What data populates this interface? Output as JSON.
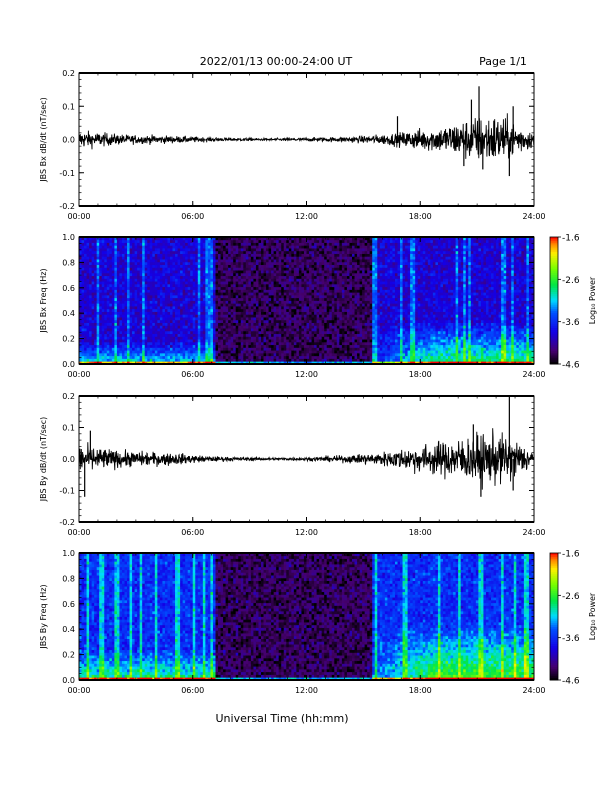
{
  "header": {
    "title": "2022/01/13  00:00-24:00 UT",
    "page": "Page 1/1"
  },
  "footer": {
    "xlabel": "Universal Time (hh:mm)"
  },
  "colors": {
    "trace": "#000000",
    "background": "#ffffff"
  },
  "chart_data": [
    {
      "type": "line",
      "ylabel": "JBS Bx dB/dt (nT/sec)",
      "xlim": [
        0,
        24
      ],
      "ylim": [
        -0.2,
        0.2
      ],
      "ytick_labels": [
        "0.2",
        "0.1",
        "0.0",
        "-0.1",
        "-0.2"
      ],
      "ytick_values": [
        0.2,
        0.1,
        0.0,
        -0.1,
        -0.2
      ],
      "xtick_labels": [
        "00:00",
        "06:00",
        "12:00",
        "18:00",
        "24:00"
      ],
      "xtick_values": [
        0,
        6,
        12,
        18,
        24
      ],
      "series": [
        {
          "x": [
            0,
            1,
            2,
            3,
            4,
            5,
            6,
            7,
            8,
            9,
            10,
            11,
            12,
            13,
            14,
            15,
            16,
            17,
            18,
            19,
            20,
            21,
            22,
            23,
            24
          ],
          "amplitude": [
            0.025,
            0.02,
            0.015,
            0.012,
            0.012,
            0.01,
            0.008,
            0.006,
            0.004,
            0.004,
            0.003,
            0.004,
            0.005,
            0.006,
            0.008,
            0.01,
            0.014,
            0.02,
            0.03,
            0.035,
            0.05,
            0.065,
            0.07,
            0.05,
            0.02
          ]
        }
      ],
      "spikes": [
        {
          "x": 20.7,
          "y": 0.12
        },
        {
          "x": 21.1,
          "y": 0.16
        },
        {
          "x": 21.3,
          "y": -0.09
        },
        {
          "x": 22.9,
          "y": 0.1
        },
        {
          "x": 22.7,
          "y": -0.11
        },
        {
          "x": 16.8,
          "y": 0.07
        },
        {
          "x": 20.3,
          "y": -0.08
        }
      ]
    },
    {
      "type": "heatmap",
      "ylabel": "JBS Bx Freq (Hz)",
      "xlim": [
        0,
        24
      ],
      "ylim": [
        0,
        1.0
      ],
      "ytick_labels": [
        "1.0",
        "0.8",
        "0.6",
        "0.4",
        "0.2",
        "0.0"
      ],
      "ytick_values": [
        1.0,
        0.8,
        0.6,
        0.4,
        0.2,
        0.0
      ],
      "xtick_labels": [
        "00:00",
        "06:00",
        "12:00",
        "18:00",
        "24:00"
      ],
      "xtick_values": [
        0,
        6,
        12,
        18,
        24
      ],
      "colorbar": {
        "label": "Log₁₀ Power",
        "range": [
          -4.6,
          -1.6
        ],
        "tick_labels": [
          "-1.6",
          "-2.6",
          "-3.6",
          "-4.6"
        ],
        "tick_values": [
          -1.6,
          -2.6,
          -3.6,
          -4.6
        ]
      },
      "quiet_interval": [
        7.2,
        15.5
      ],
      "base_level": {
        "active": -3.9,
        "quiet": -4.35
      },
      "low_freq_enhancement": [
        {
          "x": [
            0,
            7.2
          ],
          "level": -3.0,
          "f_top": 0.18
        },
        {
          "x": [
            15.5,
            24
          ],
          "level": -2.7,
          "f_top": 0.35
        }
      ],
      "striations": [
        1.0,
        1.9,
        2.6,
        3.4,
        6.3,
        6.8,
        7.0,
        15.6,
        17.0,
        17.6,
        19.9,
        20.3,
        20.6,
        22.4,
        22.9,
        23.7
      ]
    },
    {
      "type": "line",
      "ylabel": "JBS By dB/dt (nT/sec)",
      "xlim": [
        0,
        24
      ],
      "ylim": [
        -0.2,
        0.2
      ],
      "ytick_labels": [
        "0.2",
        "0.1",
        "0.0",
        "-0.1",
        "-0.2"
      ],
      "ytick_values": [
        0.2,
        0.1,
        0.0,
        -0.1,
        -0.2
      ],
      "xtick_labels": [
        "00:00",
        "06:00",
        "12:00",
        "18:00",
        "24:00"
      ],
      "xtick_values": [
        0,
        6,
        12,
        18,
        24
      ],
      "series": [
        {
          "x": [
            0,
            1,
            2,
            3,
            4,
            5,
            6,
            7,
            8,
            9,
            10,
            11,
            12,
            13,
            14,
            15,
            16,
            17,
            18,
            19,
            20,
            21,
            22,
            23,
            24
          ],
          "amplitude": [
            0.04,
            0.035,
            0.025,
            0.022,
            0.02,
            0.018,
            0.012,
            0.008,
            0.006,
            0.005,
            0.004,
            0.004,
            0.005,
            0.008,
            0.01,
            0.015,
            0.02,
            0.03,
            0.04,
            0.05,
            0.06,
            0.07,
            0.075,
            0.06,
            0.02
          ]
        }
      ],
      "spikes": [
        {
          "x": 22.7,
          "y": 0.2
        },
        {
          "x": 0.3,
          "y": -0.12
        },
        {
          "x": 21.2,
          "y": -0.12
        },
        {
          "x": 22.9,
          "y": -0.1
        },
        {
          "x": 20.8,
          "y": 0.11
        },
        {
          "x": 0.6,
          "y": 0.09
        }
      ]
    },
    {
      "type": "heatmap",
      "ylabel": "JBS By Freq (Hz)",
      "xlim": [
        0,
        24
      ],
      "ylim": [
        0,
        1.0
      ],
      "ytick_labels": [
        "1.0",
        "0.8",
        "0.6",
        "0.4",
        "0.2",
        "0.0"
      ],
      "ytick_values": [
        1.0,
        0.8,
        0.6,
        0.4,
        0.2,
        0.0
      ],
      "xtick_labels": [
        "00:00",
        "06:00",
        "12:00",
        "18:00",
        "24:00"
      ],
      "xtick_values": [
        0,
        6,
        12,
        18,
        24
      ],
      "colorbar": {
        "label": "Log₁₀ Power",
        "range": [
          -4.6,
          -1.6
        ],
        "tick_labels": [
          "-1.6",
          "-2.6",
          "-3.6",
          "-4.6"
        ],
        "tick_values": [
          -1.6,
          -2.6,
          -3.6,
          -4.6
        ]
      },
      "quiet_interval": [
        7.2,
        15.5
      ],
      "base_level": {
        "active": -3.6,
        "quiet": -4.35
      },
      "low_freq_enhancement": [
        {
          "x": [
            0,
            7.2
          ],
          "level": -2.8,
          "f_top": 0.25
        },
        {
          "x": [
            15.5,
            24
          ],
          "level": -2.5,
          "f_top": 0.45
        }
      ],
      "striations": [
        0.5,
        1.2,
        2.0,
        2.7,
        3.3,
        4.1,
        5.2,
        6.1,
        6.6,
        7.0,
        15.7,
        17.2,
        19.0,
        20.1,
        21.2,
        22.3,
        23.0,
        23.6
      ]
    }
  ]
}
